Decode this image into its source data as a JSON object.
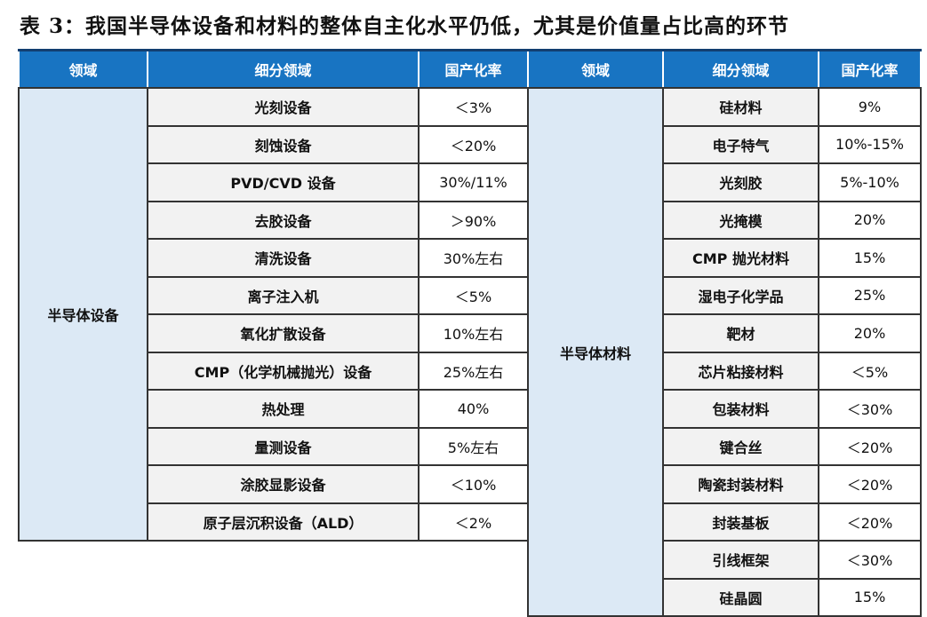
{
  "title": "表 3：我国半导体设备和材料的整体自主化水平仍低，尤其是价值量占比高的环节",
  "headers": [
    "领域",
    "细分领域",
    "国产化率"
  ],
  "equipment": {
    "domain": "半导体设备",
    "rows": [
      {
        "name": "光刻设备",
        "rate": "＜3%"
      },
      {
        "name": "刻蚀设备",
        "rate": "＜20%"
      },
      {
        "name": "PVD/CVD 设备",
        "rate": "30%/11%"
      },
      {
        "name": "去胶设备",
        "rate": "＞90%"
      },
      {
        "name": "清洗设备",
        "rate": "30%左右"
      },
      {
        "name": "离子注入机",
        "rate": "＜5%"
      },
      {
        "name": "氧化扩散设备",
        "rate": "10%左右"
      },
      {
        "name": "CMP（化学机械抛光）设备",
        "rate": "25%左右"
      },
      {
        "name": "热处理",
        "rate": "40%"
      },
      {
        "name": "量测设备",
        "rate": "5%左右"
      },
      {
        "name": "涂胶显影设备",
        "rate": "＜10%"
      },
      {
        "name": "原子层沉积设备（ALD）",
        "rate": "＜2%"
      }
    ]
  },
  "materials": {
    "domain": "半导体材料",
    "rows": [
      {
        "name": "硅材料",
        "rate": "9%"
      },
      {
        "name": "电子特气",
        "rate": "10%-15%"
      },
      {
        "name": "光刻胶",
        "rate": "5%-10%"
      },
      {
        "name": "光掩模",
        "rate": "20%"
      },
      {
        "name": "CMP 抛光材料",
        "rate": "15%"
      },
      {
        "name": "湿电子化学品",
        "rate": "25%"
      },
      {
        "name": "靶材",
        "rate": "20%"
      },
      {
        "name": "芯片粘接材料",
        "rate": "＜5%"
      },
      {
        "name": "包装材料",
        "rate": "＜30%"
      },
      {
        "name": "键合丝",
        "rate": "＜20%"
      },
      {
        "name": "陶瓷封装材料",
        "rate": "＜20%"
      },
      {
        "name": "封装基板",
        "rate": "＜20%"
      },
      {
        "name": "引线框架",
        "rate": "＜30%"
      },
      {
        "name": "硅晶圆",
        "rate": "15%"
      }
    ]
  },
  "colors": {
    "header": "#1874c2",
    "domain_cell": "#dce9f5",
    "sub_cell": "#f2f2f2"
  }
}
